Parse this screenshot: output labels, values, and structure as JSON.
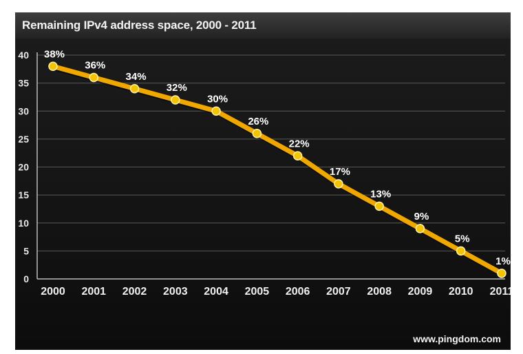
{
  "chart_data": {
    "type": "line",
    "title": "Remaining IPv4 address space, 2000 - 2011",
    "categories": [
      "2000",
      "2001",
      "2002",
      "2003",
      "2004",
      "2005",
      "2006",
      "2007",
      "2008",
      "2009",
      "2010",
      "2011"
    ],
    "series": [
      {
        "values": [
          38,
          36,
          34,
          32,
          30,
          26,
          22,
          17,
          13,
          9,
          5,
          1
        ],
        "labels": [
          "38%",
          "36%",
          "34%",
          "32%",
          "30%",
          "26%",
          "22%",
          "17%",
          "13%",
          "9%",
          "5%",
          "1%"
        ]
      }
    ],
    "yticks": [
      "0",
      "5",
      "10",
      "15",
      "20",
      "25",
      "30",
      "35",
      "40"
    ],
    "ylim": [
      0,
      40
    ],
    "grid": true,
    "legend": "none",
    "line_color": "#f0a800",
    "marker_color": "#f5c400"
  },
  "footer": {
    "source": "www.pingdom.com"
  }
}
